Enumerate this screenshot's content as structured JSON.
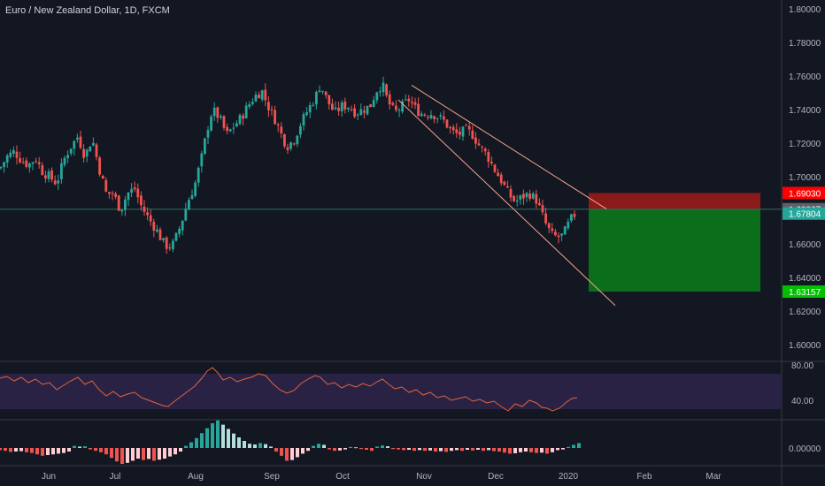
{
  "header": {
    "title": "Euro / New Zealand Dollar, 1D, FXCM"
  },
  "colors": {
    "background": "#131722",
    "up": "#26a69a",
    "down": "#ef5350",
    "text": "#b2b5be",
    "grid_divider": "#363a45",
    "rsi_band": "#2a2245",
    "rsi_line": "#e0643c",
    "channel_line": "#f4a58a",
    "stop_zone": "#8b1a1a",
    "target_zone": "#0b6e1a",
    "current_line": "#2d6e62"
  },
  "chart_data": [
    {
      "type": "candlestick",
      "title": "Euro / New Zealand Dollar, 1D, FXCM",
      "ylim": [
        1.59,
        1.8
      ],
      "y_ticks": [
        "1.80000",
        "1.78000",
        "1.76000",
        "1.74000",
        "1.72000",
        "1.70000",
        "1.68000",
        "1.66000",
        "1.64000",
        "1.62000",
        "1.60000"
      ],
      "x_ticks": [
        "Jun",
        "Jul",
        "Aug",
        "Sep",
        "Oct",
        "Nov",
        "Dec",
        "2020",
        "Feb",
        "Mar"
      ],
      "close_path": [
        [
          0,
          1.705
        ],
        [
          8,
          1.712
        ],
        [
          16,
          1.715
        ],
        [
          24,
          1.71
        ],
        [
          32,
          1.707
        ],
        [
          40,
          1.711
        ],
        [
          48,
          1.703
        ],
        [
          56,
          1.7
        ],
        [
          64,
          1.696
        ],
        [
          72,
          1.71
        ],
        [
          80,
          1.718
        ],
        [
          88,
          1.724
        ],
        [
          96,
          1.712
        ],
        [
          104,
          1.723
        ],
        [
          112,
          1.705
        ],
        [
          120,
          1.69
        ],
        [
          128,
          1.69
        ],
        [
          136,
          1.68
        ],
        [
          144,
          1.69
        ],
        [
          152,
          1.693
        ],
        [
          160,
          1.682
        ],
        [
          168,
          1.675
        ],
        [
          176,
          1.669
        ],
        [
          184,
          1.661
        ],
        [
          190,
          1.658
        ],
        [
          196,
          1.66
        ],
        [
          204,
          1.671
        ],
        [
          212,
          1.685
        ],
        [
          220,
          1.695
        ],
        [
          228,
          1.712
        ],
        [
          234,
          1.728
        ],
        [
          240,
          1.74
        ],
        [
          248,
          1.735
        ],
        [
          256,
          1.725
        ],
        [
          264,
          1.73
        ],
        [
          272,
          1.735
        ],
        [
          280,
          1.742
        ],
        [
          288,
          1.748
        ],
        [
          296,
          1.751
        ],
        [
          302,
          1.743
        ],
        [
          310,
          1.735
        ],
        [
          318,
          1.725
        ],
        [
          324,
          1.718
        ],
        [
          332,
          1.722
        ],
        [
          340,
          1.732
        ],
        [
          348,
          1.74
        ],
        [
          356,
          1.747
        ],
        [
          362,
          1.755
        ],
        [
          370,
          1.745
        ],
        [
          378,
          1.738
        ],
        [
          386,
          1.742
        ],
        [
          394,
          1.742
        ],
        [
          402,
          1.738
        ],
        [
          410,
          1.74
        ],
        [
          418,
          1.742
        ],
        [
          426,
          1.752
        ],
        [
          432,
          1.755
        ],
        [
          438,
          1.745
        ],
        [
          446,
          1.738
        ],
        [
          454,
          1.742
        ],
        [
          462,
          1.746
        ],
        [
          470,
          1.74
        ],
        [
          478,
          1.737
        ],
        [
          486,
          1.738
        ],
        [
          494,
          1.736
        ],
        [
          502,
          1.733
        ],
        [
          510,
          1.727
        ],
        [
          518,
          1.725
        ],
        [
          526,
          1.728
        ],
        [
          534,
          1.725
        ],
        [
          542,
          1.718
        ],
        [
          550,
          1.713
        ],
        [
          558,
          1.705
        ],
        [
          566,
          1.698
        ],
        [
          574,
          1.69
        ],
        [
          582,
          1.685
        ],
        [
          590,
          1.688
        ],
        [
          598,
          1.69
        ],
        [
          606,
          1.686
        ],
        [
          612,
          1.678
        ],
        [
          618,
          1.67
        ],
        [
          624,
          1.665
        ],
        [
          630,
          1.664
        ],
        [
          636,
          1.665
        ],
        [
          644,
          1.674
        ],
        [
          650,
          1.678
        ]
      ],
      "channel_upper": [
        [
          465,
          1.7545
        ],
        [
          685,
          1.6808
        ]
      ],
      "channel_lower": [
        [
          450,
          1.7458
        ],
        [
          695,
          1.6233
        ]
      ],
      "trade_zones": {
        "stop": {
          "from": 1.6903,
          "to": 1.68067
        },
        "target": {
          "from": 1.68067,
          "to": 1.63157
        }
      },
      "price_tags": [
        {
          "label": "1.69030",
          "value": 1.6903,
          "color": "#ff0000",
          "text_color": "#ffffff"
        },
        {
          "label": "1.68067",
          "value": 1.68067,
          "color": "#5d606b",
          "text_color": "#ffffff"
        },
        {
          "label": "1.67804",
          "value": 1.67804,
          "color": "#26a69a",
          "text_color": "#ffffff"
        },
        {
          "label": "1.63157",
          "value": 1.63157,
          "color": "#00c000",
          "text_color": "#ffffff"
        }
      ]
    },
    {
      "type": "line",
      "name": "RSI",
      "ylim": [
        22,
        88
      ],
      "y_ticks": [
        "80.00",
        "40.00"
      ],
      "band": [
        30,
        70
      ],
      "values": [
        [
          0,
          65
        ],
        [
          8,
          67
        ],
        [
          16,
          62
        ],
        [
          24,
          66
        ],
        [
          32,
          60
        ],
        [
          40,
          64
        ],
        [
          48,
          58
        ],
        [
          56,
          60
        ],
        [
          64,
          52
        ],
        [
          72,
          57
        ],
        [
          80,
          62
        ],
        [
          88,
          66
        ],
        [
          96,
          58
        ],
        [
          104,
          62
        ],
        [
          112,
          52
        ],
        [
          120,
          45
        ],
        [
          128,
          50
        ],
        [
          136,
          44
        ],
        [
          144,
          47
        ],
        [
          152,
          49
        ],
        [
          160,
          43
        ],
        [
          168,
          40
        ],
        [
          176,
          37
        ],
        [
          184,
          34
        ],
        [
          190,
          33
        ],
        [
          196,
          38
        ],
        [
          204,
          44
        ],
        [
          212,
          50
        ],
        [
          220,
          56
        ],
        [
          228,
          65
        ],
        [
          234,
          73
        ],
        [
          240,
          77
        ],
        [
          246,
          71
        ],
        [
          252,
          63
        ],
        [
          260,
          66
        ],
        [
          268,
          61
        ],
        [
          276,
          64
        ],
        [
          284,
          66
        ],
        [
          292,
          70
        ],
        [
          300,
          68
        ],
        [
          308,
          59
        ],
        [
          316,
          52
        ],
        [
          324,
          48
        ],
        [
          332,
          51
        ],
        [
          340,
          59
        ],
        [
          348,
          64
        ],
        [
          356,
          68
        ],
        [
          362,
          66
        ],
        [
          370,
          58
        ],
        [
          378,
          60
        ],
        [
          386,
          54
        ],
        [
          394,
          58
        ],
        [
          402,
          55
        ],
        [
          410,
          59
        ],
        [
          418,
          56
        ],
        [
          426,
          61
        ],
        [
          432,
          64
        ],
        [
          438,
          59
        ],
        [
          446,
          53
        ],
        [
          454,
          55
        ],
        [
          462,
          49
        ],
        [
          470,
          52
        ],
        [
          478,
          46
        ],
        [
          486,
          49
        ],
        [
          494,
          43
        ],
        [
          502,
          45
        ],
        [
          510,
          40
        ],
        [
          518,
          42
        ],
        [
          526,
          44
        ],
        [
          534,
          39
        ],
        [
          542,
          41
        ],
        [
          550,
          37
        ],
        [
          558,
          39
        ],
        [
          566,
          33
        ],
        [
          574,
          28
        ],
        [
          582,
          36
        ],
        [
          590,
          33
        ],
        [
          598,
          40
        ],
        [
          606,
          37
        ],
        [
          612,
          32
        ],
        [
          618,
          31
        ],
        [
          624,
          28
        ],
        [
          632,
          31
        ],
        [
          640,
          38
        ],
        [
          646,
          42
        ],
        [
          652,
          43
        ]
      ]
    },
    {
      "type": "histogram",
      "name": "MACD histogram",
      "y_ticks": [
        "0.00000"
      ],
      "values": [
        [
          0,
          -0.6
        ],
        [
          6,
          -0.8
        ],
        [
          12,
          -1.1
        ],
        [
          18,
          -1.0
        ],
        [
          24,
          -0.9
        ],
        [
          30,
          -1.2
        ],
        [
          36,
          -1.4
        ],
        [
          42,
          -1.8
        ],
        [
          48,
          -2.2
        ],
        [
          54,
          -2.0
        ],
        [
          60,
          -1.8
        ],
        [
          66,
          -1.6
        ],
        [
          72,
          -1.4
        ],
        [
          78,
          -1.0
        ],
        [
          84,
          0.6
        ],
        [
          90,
          0.4
        ],
        [
          96,
          0.5
        ],
        [
          102,
          -0.4
        ],
        [
          108,
          -0.8
        ],
        [
          114,
          -1.2
        ],
        [
          120,
          -1.8
        ],
        [
          126,
          -2.8
        ],
        [
          132,
          -3.8
        ],
        [
          138,
          -4.5
        ],
        [
          144,
          -4.2
        ],
        [
          150,
          -3.6
        ],
        [
          156,
          -3.0
        ],
        [
          162,
          -3.4
        ],
        [
          168,
          -3.1
        ],
        [
          174,
          -3.6
        ],
        [
          180,
          -3.3
        ],
        [
          186,
          -3.0
        ],
        [
          192,
          -2.4
        ],
        [
          198,
          -1.8
        ],
        [
          204,
          -1.0
        ],
        [
          210,
          0.6
        ],
        [
          216,
          1.6
        ],
        [
          222,
          2.8
        ],
        [
          228,
          4.2
        ],
        [
          234,
          5.6
        ],
        [
          240,
          7.0
        ],
        [
          246,
          7.8
        ],
        [
          252,
          6.6
        ],
        [
          258,
          5.4
        ],
        [
          264,
          4.1
        ],
        [
          270,
          3.0
        ],
        [
          276,
          2.0
        ],
        [
          282,
          1.2
        ],
        [
          288,
          1.0
        ],
        [
          294,
          1.4
        ],
        [
          300,
          1.1
        ],
        [
          306,
          0.4
        ],
        [
          312,
          -1.0
        ],
        [
          318,
          -2.2
        ],
        [
          324,
          -3.6
        ],
        [
          330,
          -3.4
        ],
        [
          336,
          -2.6
        ],
        [
          342,
          -1.6
        ],
        [
          348,
          -0.8
        ],
        [
          354,
          0.6
        ],
        [
          360,
          1.2
        ],
        [
          366,
          0.9
        ],
        [
          372,
          -0.4
        ],
        [
          378,
          -0.8
        ],
        [
          384,
          -0.7
        ],
        [
          390,
          -0.4
        ],
        [
          396,
          0.3
        ],
        [
          402,
          0.2
        ],
        [
          408,
          -0.3
        ],
        [
          414,
          -0.5
        ],
        [
          420,
          -0.8
        ],
        [
          426,
          0.4
        ],
        [
          432,
          0.7
        ],
        [
          438,
          0.5
        ],
        [
          444,
          -0.3
        ],
        [
          450,
          -0.4
        ],
        [
          456,
          -0.6
        ],
        [
          462,
          -0.5
        ],
        [
          468,
          -0.8
        ],
        [
          474,
          -0.6
        ],
        [
          480,
          -0.8
        ],
        [
          486,
          -0.7
        ],
        [
          492,
          -1.0
        ],
        [
          498,
          -0.9
        ],
        [
          504,
          -1.1
        ],
        [
          510,
          -0.8
        ],
        [
          516,
          -0.6
        ],
        [
          522,
          -0.8
        ],
        [
          528,
          -0.5
        ],
        [
          534,
          -0.7
        ],
        [
          540,
          -0.5
        ],
        [
          546,
          -0.8
        ],
        [
          552,
          -0.6
        ],
        [
          558,
          -0.9
        ],
        [
          564,
          -1.0
        ],
        [
          570,
          -1.3
        ],
        [
          576,
          -1.6
        ],
        [
          582,
          -1.5
        ],
        [
          588,
          -1.2
        ],
        [
          594,
          -1.0
        ],
        [
          600,
          -1.2
        ],
        [
          606,
          -1.4
        ],
        [
          612,
          -1.3
        ],
        [
          618,
          -1.6
        ],
        [
          624,
          -1.2
        ],
        [
          630,
          -0.6
        ],
        [
          636,
          -0.4
        ],
        [
          642,
          0.3
        ],
        [
          648,
          0.9
        ],
        [
          654,
          1.4
        ]
      ]
    }
  ]
}
